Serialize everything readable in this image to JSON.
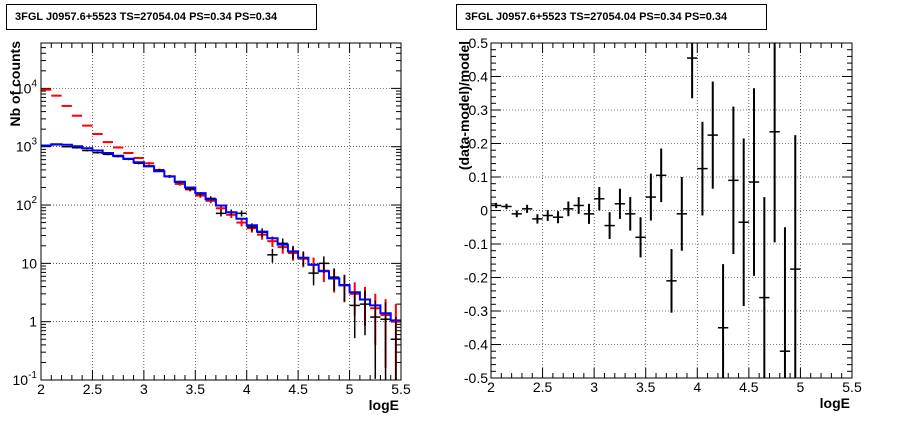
{
  "chart_data": [
    {
      "type": "line",
      "title": "3FGL J0957.6+5523 TS=27054.04 PS=0.34 PS=0.34",
      "xlabel": "logE",
      "ylabel": "Nb of counts",
      "xlim": [
        2,
        5.5
      ],
      "ylim": [
        0.1,
        60000
      ],
      "yscale": "log",
      "grid": true,
      "x_ticks": [
        "2",
        "2.5",
        "3",
        "3.5",
        "4",
        "4.5",
        "5",
        "5.5"
      ],
      "y_ticks": [
        {
          "v": 0.1,
          "b": "10",
          "e": "-1"
        },
        {
          "v": 1,
          "b": "1",
          "e": ""
        },
        {
          "v": 10,
          "b": "10",
          "e": ""
        },
        {
          "v": 100,
          "b": "10",
          "e": "2"
        },
        {
          "v": 1000,
          "b": "10",
          "e": "3"
        },
        {
          "v": 10000,
          "b": "10",
          "e": "4"
        }
      ],
      "bin_width": 0.1,
      "series": [
        {
          "role": "total",
          "color": "#ff0000",
          "x": [
            2.05,
            2.15,
            2.25,
            2.35,
            2.45,
            2.55,
            2.65,
            2.75,
            2.85,
            2.95,
            3.05,
            3.15,
            3.25,
            3.35,
            3.45,
            3.55,
            3.65,
            3.75,
            3.85,
            3.95,
            4.05,
            4.15,
            4.25,
            4.35,
            4.45,
            4.55,
            4.65,
            4.75,
            4.85,
            4.95,
            5.05,
            5.15,
            5.25,
            5.35,
            5.45
          ],
          "y": [
            9500,
            7500,
            5000,
            3400,
            2300,
            1650,
            1200,
            970,
            780,
            640,
            520,
            400,
            310,
            230,
            185,
            145,
            118,
            88,
            68,
            50,
            40,
            31,
            24,
            19,
            15,
            12,
            9.5,
            7.5,
            5.5,
            4.2,
            3.0,
            2.4,
            1.7,
            1.3,
            1.0
          ]
        },
        {
          "role": "model",
          "color": "#0000ff",
          "x": [
            2.0,
            2.1,
            2.2,
            2.3,
            2.4,
            2.5,
            2.6,
            2.7,
            2.8,
            2.9,
            3.0,
            3.1,
            3.2,
            3.3,
            3.4,
            3.5,
            3.6,
            3.7,
            3.8,
            3.9,
            4.0,
            4.1,
            4.2,
            4.3,
            4.4,
            4.5,
            4.6,
            4.7,
            4.8,
            4.9,
            5.0,
            5.1,
            5.2,
            5.3,
            5.4,
            5.5
          ],
          "y": [
            1050,
            1100,
            1080,
            1020,
            940,
            860,
            780,
            700,
            620,
            540,
            460,
            380,
            310,
            250,
            200,
            160,
            125,
            98,
            75,
            58,
            45,
            35,
            27,
            21,
            16,
            12.5,
            9.5,
            7.3,
            5.5,
            4.2,
            3.2,
            2.4,
            1.9,
            1.4,
            1.05,
            1.05
          ]
        },
        {
          "role": "data",
          "color": "#000000",
          "x": [
            2.05,
            2.15,
            2.25,
            2.35,
            2.45,
            2.55,
            2.65,
            2.75,
            2.85,
            2.95,
            3.05,
            3.15,
            3.25,
            3.35,
            3.45,
            3.55,
            3.65,
            3.75,
            3.85,
            3.95,
            4.05,
            4.15,
            4.25,
            4.35,
            4.45,
            4.55,
            4.65,
            4.75,
            4.85,
            4.95,
            5.05,
            5.15,
            5.25,
            5.35,
            5.45
          ],
          "y": [
            1050,
            1080,
            1000,
            960,
            860,
            790,
            740,
            680,
            610,
            520,
            470,
            395,
            310,
            245,
            190,
            155,
            130,
            72,
            75,
            72,
            42,
            34,
            14,
            22,
            16,
            12.5,
            6.8,
            10,
            5.8,
            4.3,
            1.9,
            2.0,
            1.2,
            1.1,
            0.5
          ]
        }
      ]
    },
    {
      "type": "scatter",
      "title": "3FGL J0957.6+5523 TS=27054.04 PS=0.34 PS=0.34",
      "xlabel": "logE",
      "ylabel": "(data-model)/model",
      "xlim": [
        2,
        5.5
      ],
      "ylim": [
        -0.5,
        0.5
      ],
      "grid": true,
      "x_ticks": [
        "2",
        "2.5",
        "3",
        "3.5",
        "4",
        "4.5",
        "5",
        "5.5"
      ],
      "y_ticks": [
        "-0.5",
        "-0.4",
        "-0.3",
        "-0.2",
        "-0.1",
        "0",
        "0.1",
        "0.2",
        "0.3",
        "0.4",
        "0.5"
      ],
      "bin_width": 0.1,
      "points": [
        {
          "x": 2.05,
          "y": 0.015,
          "err": 0.008
        },
        {
          "x": 2.15,
          "y": 0.012,
          "err": 0.008
        },
        {
          "x": 2.25,
          "y": -0.01,
          "err": 0.01
        },
        {
          "x": 2.35,
          "y": 0.005,
          "err": 0.012
        },
        {
          "x": 2.45,
          "y": -0.025,
          "err": 0.014
        },
        {
          "x": 2.55,
          "y": -0.015,
          "err": 0.016
        },
        {
          "x": 2.65,
          "y": -0.02,
          "err": 0.018
        },
        {
          "x": 2.75,
          "y": 0.005,
          "err": 0.022
        },
        {
          "x": 2.85,
          "y": 0.015,
          "err": 0.025
        },
        {
          "x": 2.95,
          "y": -0.01,
          "err": 0.03
        },
        {
          "x": 3.05,
          "y": 0.035,
          "err": 0.035
        },
        {
          "x": 3.15,
          "y": -0.045,
          "err": 0.04
        },
        {
          "x": 3.25,
          "y": 0.02,
          "err": 0.045
        },
        {
          "x": 3.35,
          "y": -0.01,
          "err": 0.05
        },
        {
          "x": 3.45,
          "y": -0.08,
          "err": 0.06
        },
        {
          "x": 3.55,
          "y": 0.04,
          "err": 0.07
        },
        {
          "x": 3.65,
          "y": 0.105,
          "err": 0.08
        },
        {
          "x": 3.75,
          "y": -0.21,
          "err": 0.095
        },
        {
          "x": 3.85,
          "y": -0.01,
          "err": 0.11
        },
        {
          "x": 3.95,
          "y": 0.455,
          "err": 0.12
        },
        {
          "x": 4.05,
          "y": 0.125,
          "err": 0.14
        },
        {
          "x": 4.15,
          "y": 0.225,
          "err": 0.16
        },
        {
          "x": 4.25,
          "y": -0.35,
          "err": 0.19
        },
        {
          "x": 4.35,
          "y": 0.09,
          "err": 0.22
        },
        {
          "x": 4.45,
          "y": -0.035,
          "err": 0.25
        },
        {
          "x": 4.55,
          "y": 0.085,
          "err": 0.28
        },
        {
          "x": 4.65,
          "y": -0.26,
          "err": 0.3
        },
        {
          "x": 4.75,
          "y": 0.235,
          "err": 0.33
        },
        {
          "x": 4.85,
          "y": -0.42,
          "err": 0.37
        },
        {
          "x": 4.95,
          "y": -0.175,
          "err": 0.4
        }
      ]
    }
  ]
}
